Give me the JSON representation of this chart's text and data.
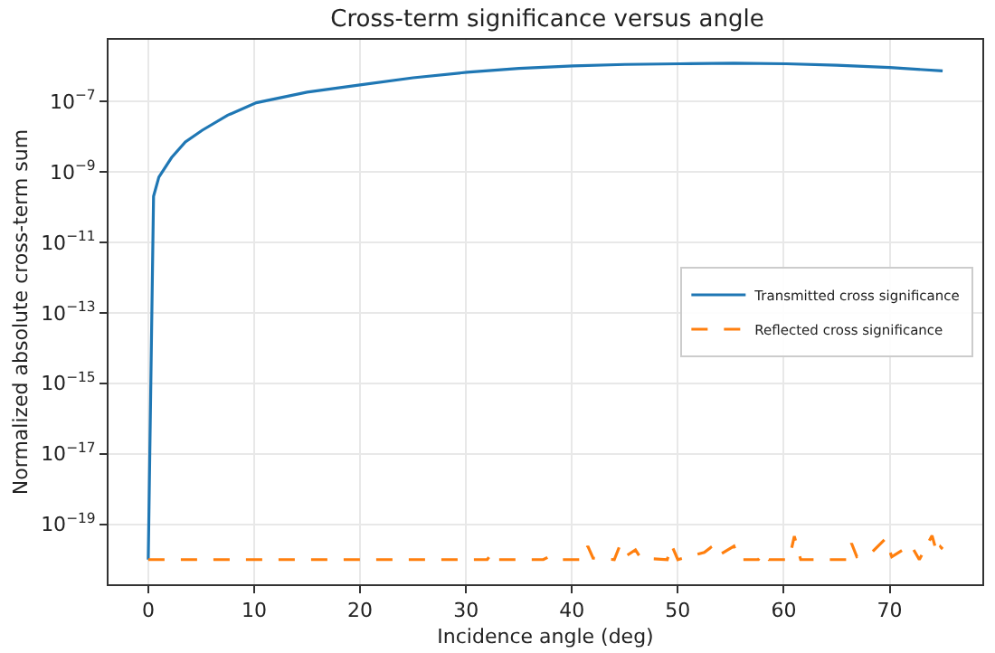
{
  "chart_data": {
    "type": "line",
    "title": "Cross-term significance versus angle",
    "xlabel": "Incidence angle (deg)",
    "ylabel": "Normalized absolute cross-term sum",
    "log": "y",
    "grid": true,
    "legend": "right",
    "line_style": "solid",
    "marker": "none",
    "xlim": [
      -3.75,
      78.75
    ],
    "xticks": [
      0,
      10,
      20,
      30,
      40,
      50,
      60,
      70
    ],
    "ylim": [
      2e-21,
      5.5e-06
    ],
    "yticks": [
      {
        "value": 1e-19,
        "label": "10$^{−19}$"
      },
      {
        "value": 1e-17,
        "label": "10$^{−17}$"
      },
      {
        "value": 1e-15,
        "label": "10$^{−15}$"
      },
      {
        "value": 1e-13,
        "label": "10$^{−13}$"
      },
      {
        "value": 1e-11,
        "label": "10$^{−11}$"
      },
      {
        "value": 1e-09,
        "label": "10$^{−9}$"
      },
      {
        "value": 1e-07,
        "label": "10$^{−7}$"
      }
    ],
    "series": [
      {
        "name": "Transmitted cross significance",
        "color": "#1f77b4",
        "x": [
          0,
          0.5,
          1,
          2.2,
          3.5,
          5.1,
          7.5,
          10.2,
          15,
          20,
          25,
          30.1,
          35,
          40.1,
          45,
          50.2,
          55.3,
          60.2,
          65,
          70,
          75
        ],
        "values": [
          1e-20,
          2e-10,
          7e-10,
          2.5e-09,
          7e-09,
          1.5e-08,
          4e-08,
          9e-08,
          1.8e-07,
          2.9e-07,
          4.6e-07,
          6.6e-07,
          8.5e-07,
          1e-06,
          1.1e-06,
          1.15e-06,
          1.2e-06,
          1.15e-06,
          1.05e-06,
          9e-07,
          7.2e-07
        ]
      },
      {
        "name": "Reflected cross significance",
        "color": "#ff7f0e",
        "line_style": "dashed",
        "x": [
          0,
          32,
          32.5,
          33,
          37.3,
          37.8,
          38.3,
          41,
          41.5,
          42,
          44,
          44.5,
          45,
          46,
          46.5,
          49,
          49.4,
          50,
          52.5,
          53.1,
          53.6,
          55.3,
          55.8,
          57.6,
          58.1,
          58.6,
          60.5,
          61,
          61.6,
          65.9,
          66.4,
          66.9,
          68.3,
          69.6,
          70.2,
          72,
          72.8,
          74,
          74.5,
          74.8,
          75
        ],
        "values": [
          1e-20,
          1e-20,
          1.6e-20,
          1e-20,
          1e-20,
          1.2e-20,
          1e-20,
          1e-20,
          2.4e-20,
          1.1e-20,
          1e-20,
          2.4e-20,
          1.2e-20,
          1.9e-20,
          1.1e-20,
          1e-20,
          2.6e-20,
          1e-20,
          1.6e-20,
          2.2e-20,
          1.2e-20,
          2.4e-20,
          1e-20,
          1e-20,
          1.6e-20,
          1e-20,
          1e-20,
          4.6e-20,
          1e-20,
          1e-20,
          2.9e-20,
          1.2e-20,
          1.6e-20,
          3.9e-20,
          1.2e-20,
          2.6e-20,
          1e-20,
          4.8e-20,
          1.4e-20,
          2.3e-20,
          2e-20
        ]
      }
    ]
  }
}
